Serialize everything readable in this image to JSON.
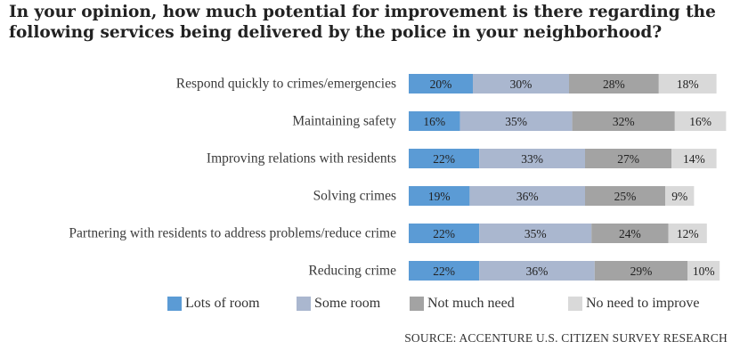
{
  "title_lines": [
    "In your opinion, how much potential for improvement is there regarding the",
    "following services being delivered by the police in your neighborhood?"
  ],
  "source": "SOURCE: ACCENTURE U.S. CITIZEN SURVEY RESEARCH",
  "colors": {
    "lots": "#5b9bd5",
    "some": "#aab7cf",
    "not_much": "#a3a3a3",
    "no_need": "#d9d9d9"
  },
  "chart_data": {
    "type": "bar",
    "orientation": "horizontal",
    "stacked": true,
    "categories": [
      "Respond quickly to crimes/emergencies",
      "Maintaining safety",
      "Improving relations with residents",
      "Solving crimes",
      "Partnering with residents to address problems/reduce crime",
      "Reducing crime"
    ],
    "series": [
      {
        "name": "Lots of room",
        "values": [
          20,
          16,
          22,
          19,
          22,
          22
        ],
        "labels": [
          "20%",
          "16%",
          "22%",
          "19%",
          "22%",
          "22%"
        ]
      },
      {
        "name": "Some room",
        "values": [
          30,
          35,
          33,
          36,
          35,
          36
        ],
        "labels": [
          "30%",
          "35%",
          "33%",
          "36%",
          "35%",
          "36%"
        ]
      },
      {
        "name": "Not much need",
        "values": [
          28,
          32,
          27,
          25,
          24,
          29
        ],
        "labels": [
          "28%",
          "32%",
          "27%",
          "25%",
          "24%",
          "29%"
        ]
      },
      {
        "name": "No need to improve",
        "values": [
          18,
          16,
          14,
          9,
          12,
          10
        ],
        "labels": [
          "18%",
          "16%",
          "14%",
          "9%",
          "12%",
          "10%"
        ]
      }
    ],
    "value_unit": "%",
    "grid": false,
    "legend_position": "bottom"
  }
}
